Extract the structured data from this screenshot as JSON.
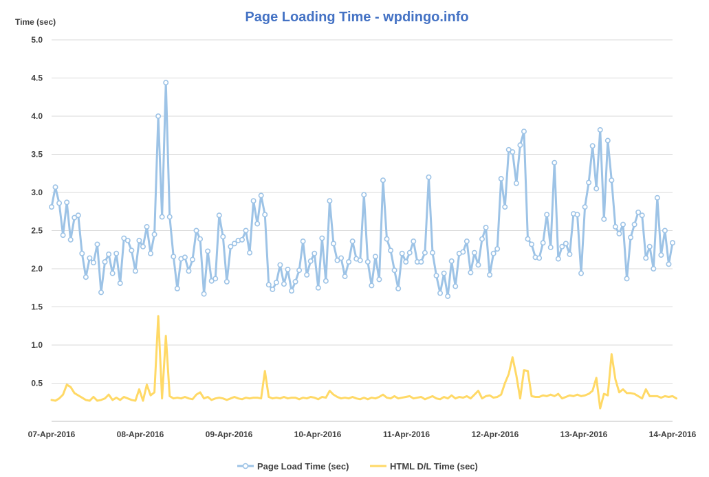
{
  "chart_data": {
    "type": "line",
    "title": "Page Loading Time - wpdingo.info",
    "ylabel": "Time (sec)",
    "xlabel": "",
    "ylim": [
      0,
      5.0
    ],
    "yticks": [
      "5.0",
      "4.5",
      "4.0",
      "3.5",
      "3.0",
      "2.5",
      "2.0",
      "1.5",
      "1.0",
      "0.5"
    ],
    "xticks": [
      "07-Apr-2016",
      "08-Apr-2016",
      "09-Apr-2016",
      "10-Apr-2016",
      "11-Apr-2016",
      "12-Apr-2016",
      "13-Apr-2016",
      "14-Apr-2016"
    ],
    "grid": true,
    "legend_position": "bottom",
    "series": [
      {
        "name": "Page Load Time (sec)",
        "color": "#9DC3E6",
        "marker": "circle",
        "values": [
          2.81,
          3.07,
          2.86,
          2.44,
          2.87,
          2.38,
          2.67,
          2.7,
          2.2,
          1.89,
          2.14,
          2.08,
          2.32,
          1.69,
          2.09,
          2.19,
          1.94,
          2.2,
          1.81,
          2.4,
          2.37,
          2.24,
          1.97,
          2.37,
          2.29,
          2.55,
          2.2,
          2.45,
          4.0,
          2.68,
          4.44,
          2.68,
          2.16,
          1.74,
          2.13,
          2.15,
          1.97,
          2.12,
          2.5,
          2.39,
          1.67,
          2.23,
          1.84,
          1.87,
          2.7,
          2.42,
          1.83,
          2.29,
          2.33,
          2.37,
          2.38,
          2.5,
          2.21,
          2.89,
          2.59,
          2.96,
          2.71,
          1.79,
          1.73,
          1.82,
          2.05,
          1.8,
          1.99,
          1.71,
          1.83,
          1.98,
          2.36,
          1.92,
          2.1,
          2.2,
          1.75,
          2.4,
          1.84,
          2.89,
          2.33,
          2.11,
          2.14,
          1.9,
          2.09,
          2.36,
          2.13,
          2.11,
          2.97,
          2.09,
          1.78,
          2.16,
          1.86,
          3.16,
          2.39,
          2.24,
          1.98,
          1.74,
          2.2,
          2.09,
          2.21,
          2.36,
          2.09,
          2.09,
          2.21,
          3.2,
          2.21,
          1.91,
          1.68,
          1.94,
          1.64,
          2.1,
          1.77,
          2.2,
          2.22,
          2.36,
          1.95,
          2.21,
          2.05,
          2.39,
          2.54,
          1.92,
          2.2,
          2.26,
          3.18,
          2.81,
          3.56,
          3.53,
          3.12,
          3.62,
          3.8,
          2.39,
          2.32,
          2.15,
          2.14,
          2.34,
          2.71,
          2.28,
          3.39,
          2.13,
          2.29,
          2.33,
          2.19,
          2.72,
          2.71,
          1.94,
          2.81,
          3.13,
          3.61,
          3.05,
          3.82,
          2.65,
          3.68,
          3.16,
          2.55,
          2.46,
          2.58,
          1.87,
          2.41,
          2.58,
          2.74,
          2.7,
          2.14,
          2.29,
          2.0,
          2.93,
          2.18,
          2.5,
          2.06,
          2.34
        ]
      },
      {
        "name": "HTML D/L Time (sec)",
        "color": "#FFD966",
        "marker": "none",
        "values": [
          0.28,
          0.27,
          0.3,
          0.35,
          0.48,
          0.45,
          0.37,
          0.34,
          0.31,
          0.28,
          0.27,
          0.32,
          0.27,
          0.28,
          0.3,
          0.35,
          0.28,
          0.31,
          0.28,
          0.32,
          0.3,
          0.28,
          0.27,
          0.42,
          0.27,
          0.48,
          0.34,
          0.38,
          1.38,
          0.3,
          1.12,
          0.33,
          0.3,
          0.31,
          0.3,
          0.32,
          0.3,
          0.29,
          0.35,
          0.38,
          0.3,
          0.32,
          0.28,
          0.3,
          0.31,
          0.3,
          0.28,
          0.3,
          0.32,
          0.3,
          0.29,
          0.31,
          0.3,
          0.31,
          0.31,
          0.3,
          0.66,
          0.32,
          0.3,
          0.31,
          0.3,
          0.32,
          0.3,
          0.31,
          0.31,
          0.29,
          0.31,
          0.3,
          0.32,
          0.31,
          0.29,
          0.32,
          0.31,
          0.4,
          0.35,
          0.32,
          0.3,
          0.31,
          0.3,
          0.32,
          0.3,
          0.29,
          0.31,
          0.29,
          0.31,
          0.3,
          0.32,
          0.35,
          0.31,
          0.3,
          0.33,
          0.3,
          0.31,
          0.32,
          0.33,
          0.3,
          0.31,
          0.32,
          0.29,
          0.31,
          0.33,
          0.3,
          0.29,
          0.32,
          0.3,
          0.34,
          0.3,
          0.32,
          0.31,
          0.33,
          0.3,
          0.35,
          0.4,
          0.3,
          0.33,
          0.34,
          0.31,
          0.32,
          0.35,
          0.5,
          0.62,
          0.84,
          0.6,
          0.3,
          0.67,
          0.66,
          0.33,
          0.32,
          0.32,
          0.34,
          0.33,
          0.35,
          0.33,
          0.36,
          0.3,
          0.32,
          0.34,
          0.33,
          0.35,
          0.33,
          0.34,
          0.36,
          0.4,
          0.57,
          0.17,
          0.36,
          0.34,
          0.88,
          0.55,
          0.38,
          0.42,
          0.37,
          0.37,
          0.36,
          0.33,
          0.3,
          0.42,
          0.33,
          0.33,
          0.33,
          0.31,
          0.33,
          0.32,
          0.33,
          0.3
        ]
      }
    ]
  }
}
